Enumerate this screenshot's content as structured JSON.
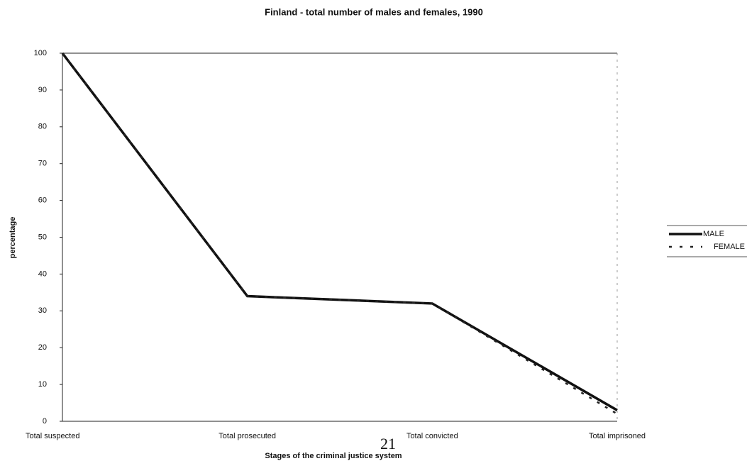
{
  "chart_data": {
    "type": "line",
    "title": "Finland - total number of males and females, 1990",
    "x_label": "Stages of the criminal justice system",
    "y_label": "percentage",
    "categories": [
      "Total suspected",
      "Total prosecuted",
      "Total convicted",
      "Total imprisoned"
    ],
    "series": [
      {
        "name": "MALE",
        "color": "#111111",
        "dash": "solid",
        "values": [
          100,
          34,
          32,
          3
        ]
      },
      {
        "name": "FEMALE",
        "color": "#222222",
        "dash": "dashed",
        "values": [
          100,
          34,
          32,
          2
        ]
      }
    ],
    "ylim": [
      0,
      100
    ],
    "yticks": [
      0,
      10,
      20,
      30,
      40,
      50,
      60,
      70,
      80,
      90,
      100
    ],
    "grid": false,
    "legend": "right"
  },
  "page_number": "21"
}
